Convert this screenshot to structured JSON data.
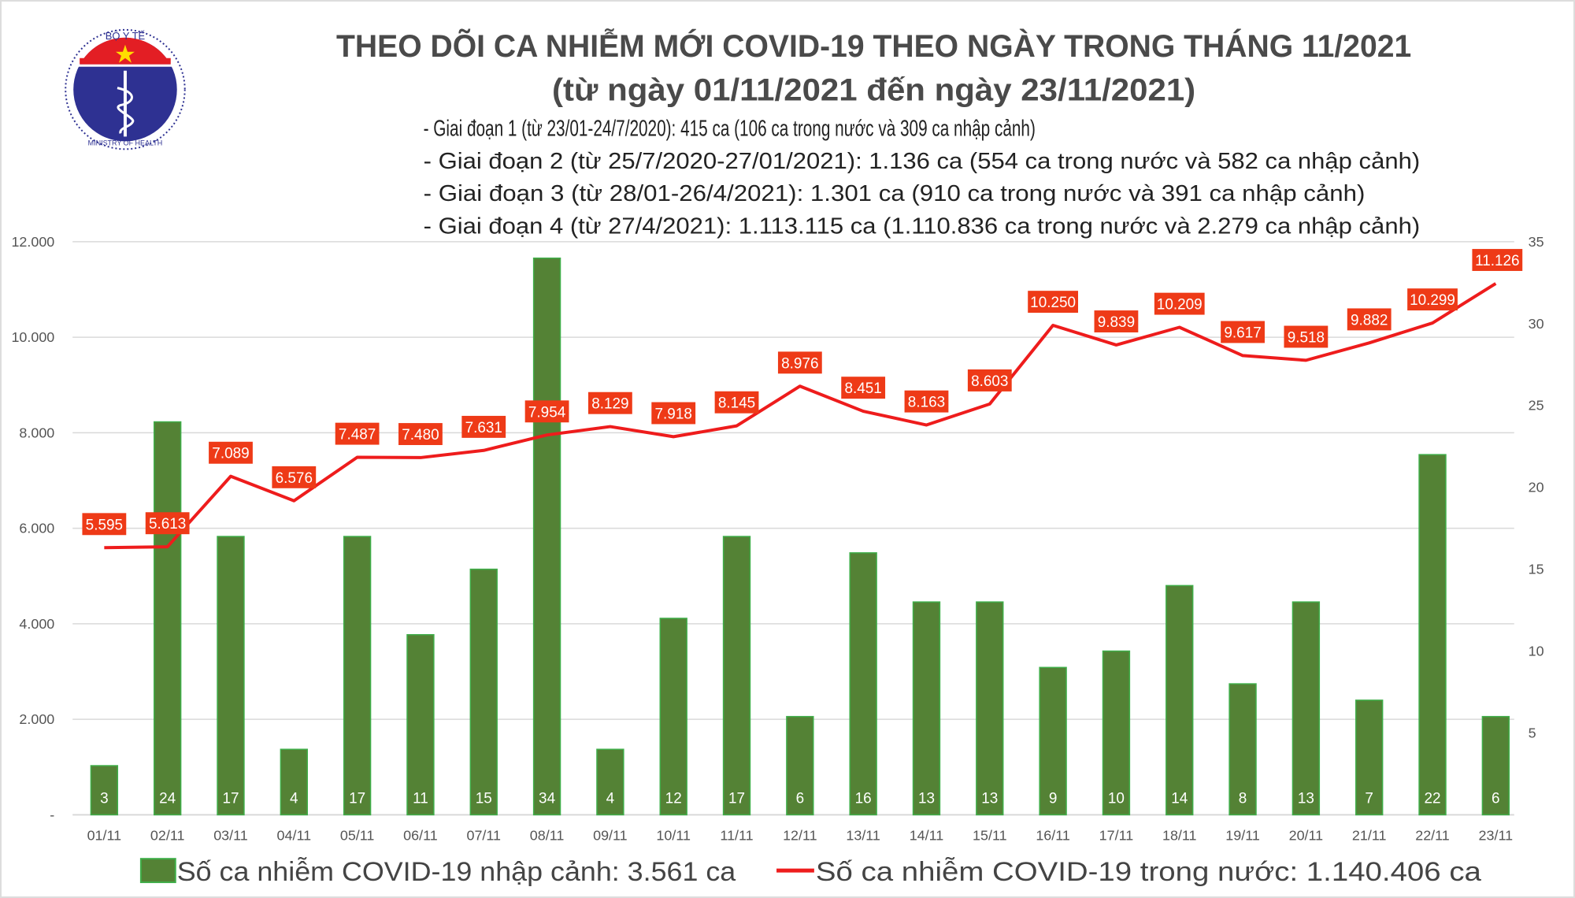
{
  "logo": {
    "text_top": "BỘ Y TẾ",
    "text_bottom": "MINISTRY OF HEALTH"
  },
  "chart_data": {
    "type": "bar+line",
    "title": "THEO DÕI CA NHIỄM MỚI COVID-19 THEO NGÀY TRONG THÁNG 11/2021",
    "subtitle": "(từ ngày 01/11/2021 đến ngày 23/11/2021)",
    "notes": [
      "- Giai đoạn 1 (từ 23/01-24/7/2020): 415 ca (106 ca trong nước và 309 ca nhập cảnh)",
      "- Giai đoạn 2 (từ 25/7/2020-27/01/2021): 1.136 ca (554 ca trong nước và 582 ca nhập cảnh)",
      "- Giai đoạn 3 (từ 28/01-26/4/2021): 1.301 ca (910 ca trong nước và 391 ca nhập cảnh)",
      "- Giai đoạn 4 (từ 27/4/2021): 1.113.115 ca (1.110.836 ca trong nước và 2.279 ca nhập cảnh)"
    ],
    "categories": [
      "01/11",
      "02/11",
      "03/11",
      "04/11",
      "05/11",
      "06/11",
      "07/11",
      "08/11",
      "09/11",
      "10/11",
      "11/11",
      "12/11",
      "13/11",
      "14/11",
      "15/11",
      "16/11",
      "17/11",
      "18/11",
      "19/11",
      "20/11",
      "21/11",
      "22/11",
      "23/11"
    ],
    "series": [
      {
        "name": "Số ca nhiễm COVID-19 nhập cảnh: 3.561 ca",
        "type": "bar",
        "axis": "right",
        "color": "#548235",
        "values": [
          3,
          24,
          17,
          4,
          17,
          11,
          15,
          34,
          4,
          12,
          17,
          6,
          16,
          13,
          13,
          9,
          10,
          14,
          8,
          13,
          7,
          22,
          6
        ]
      },
      {
        "name": "Số ca nhiễm COVID-19 trong nước: 1.140.406 ca",
        "type": "line",
        "axis": "left",
        "color": "#ee1c1c",
        "values": [
          5595,
          5613,
          7089,
          6576,
          7487,
          7480,
          7631,
          7954,
          8129,
          7918,
          8145,
          8976,
          8451,
          8163,
          8603,
          10250,
          9839,
          10209,
          9617,
          9518,
          9882,
          10299,
          11126
        ],
        "labels": [
          "5.595",
          "5.613",
          "7.089",
          "6.576",
          "7.487",
          "7.480",
          "7.631",
          "7.954",
          "8.129",
          "7.918",
          "8.145",
          "8.976",
          "8.451",
          "8.163",
          "8.603",
          "10.250",
          "9.839",
          "10.209",
          "9.617",
          "9.518",
          "9.882",
          "10.299",
          "11.126"
        ]
      }
    ],
    "left_axis": {
      "ylim": [
        0,
        12000
      ],
      "ticks": [
        "-",
        "2.000",
        "4.000",
        "6.000",
        "8.000",
        "10.000",
        "12.000"
      ],
      "tick_values": [
        0,
        2000,
        4000,
        6000,
        8000,
        10000,
        12000
      ]
    },
    "right_axis": {
      "ylim": [
        0,
        35
      ],
      "ticks": [
        "5",
        "10",
        "15",
        "20",
        "25",
        "30",
        "35"
      ],
      "tick_values": [
        5,
        10,
        15,
        20,
        25,
        30,
        35
      ]
    },
    "grid": true,
    "legend_placement": "bottom",
    "label_box_color": "#ee3a17"
  }
}
